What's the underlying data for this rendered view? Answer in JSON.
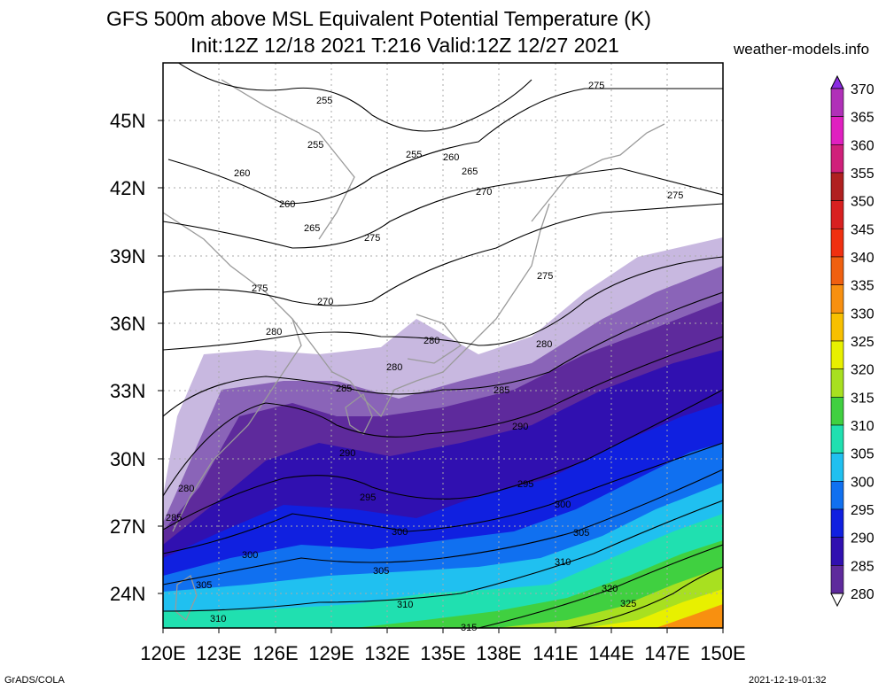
{
  "header": {
    "title_line1": "GFS 500m above MSL Equivalent Potential Temperature (K)",
    "title_line2": "Init:12Z 12/18 2021 T:216 Valid:12Z 12/27 2021",
    "site": "weather-models.info"
  },
  "footer": {
    "left": "GrADS/COLA",
    "right": "2021-12-19-01:32"
  },
  "axes": {
    "lat_labels": [
      "45N",
      "42N",
      "39N",
      "36N",
      "33N",
      "30N",
      "27N",
      "24N"
    ],
    "lon_labels": [
      "120E",
      "123E",
      "126E",
      "129E",
      "132E",
      "135E",
      "138E",
      "141E",
      "144E",
      "147E",
      "150E"
    ]
  },
  "colorbar": {
    "levels": [
      "370",
      "365",
      "360",
      "355",
      "350",
      "345",
      "340",
      "335",
      "330",
      "325",
      "320",
      "315",
      "310",
      "305",
      "300",
      "295",
      "290",
      "285",
      "280"
    ],
    "colors": [
      "#8a2be2",
      "#b030b8",
      "#e020c0",
      "#d0207a",
      "#b02020",
      "#d82020",
      "#f03010",
      "#f06010",
      "#f89010",
      "#f8c000",
      "#e8f000",
      "#a8e020",
      "#40d040",
      "#20e0b0",
      "#20c0f0",
      "#1070f0",
      "#1020e0",
      "#3010b0",
      "#5e2a9c",
      "#8a64b8",
      "#c8b8e0"
    ]
  },
  "contour_labels": [
    "255",
    "255",
    "255",
    "260",
    "260",
    "260",
    "265",
    "265",
    "270",
    "270",
    "275",
    "275",
    "275",
    "275",
    "275",
    "280",
    "280",
    "280",
    "280",
    "280",
    "285",
    "285",
    "285",
    "290",
    "290",
    "295",
    "295",
    "300",
    "300",
    "300",
    "305",
    "305",
    "305",
    "310",
    "310",
    "310",
    "315",
    "320",
    "325"
  ]
}
